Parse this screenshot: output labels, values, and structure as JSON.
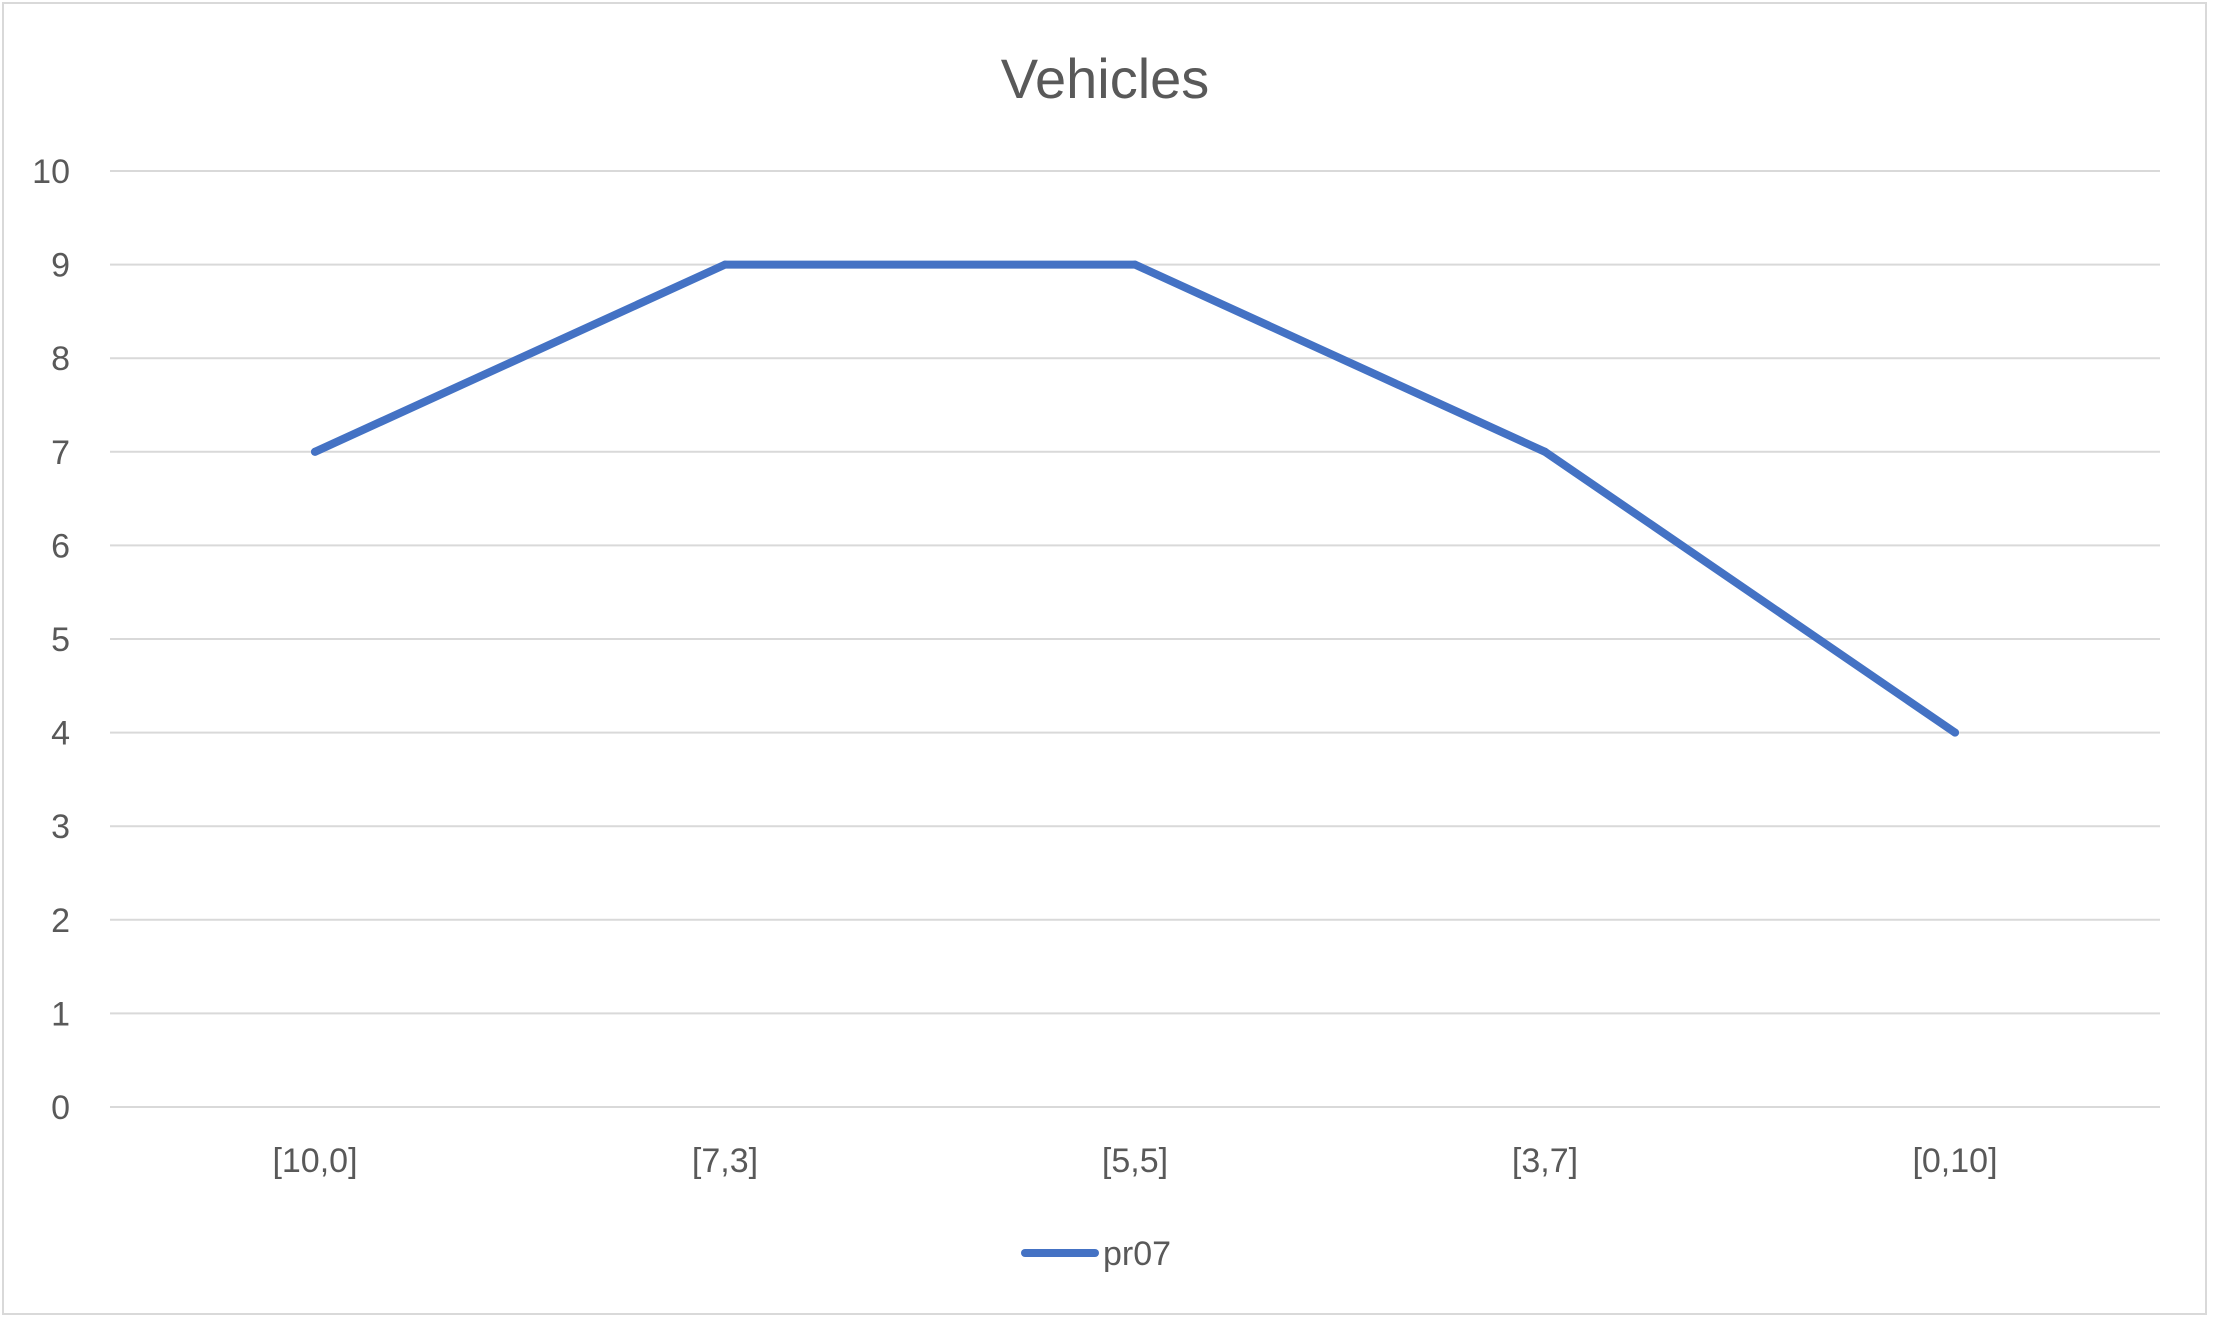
{
  "chart_data": {
    "type": "line",
    "title": "Vehicles",
    "xlabel": "",
    "ylabel": "",
    "categories": [
      "[10,0]",
      "[7,3]",
      "[5,5]",
      "[3,7]",
      "[0,10]"
    ],
    "series": [
      {
        "name": "pr07",
        "values": [
          7,
          9,
          9,
          7,
          4
        ],
        "color": "#4472c4"
      }
    ],
    "ylim": [
      0,
      10
    ],
    "yticks": [
      0,
      1,
      2,
      3,
      4,
      5,
      6,
      7,
      8,
      9,
      10
    ],
    "grid": true,
    "legend_position": "bottom"
  }
}
